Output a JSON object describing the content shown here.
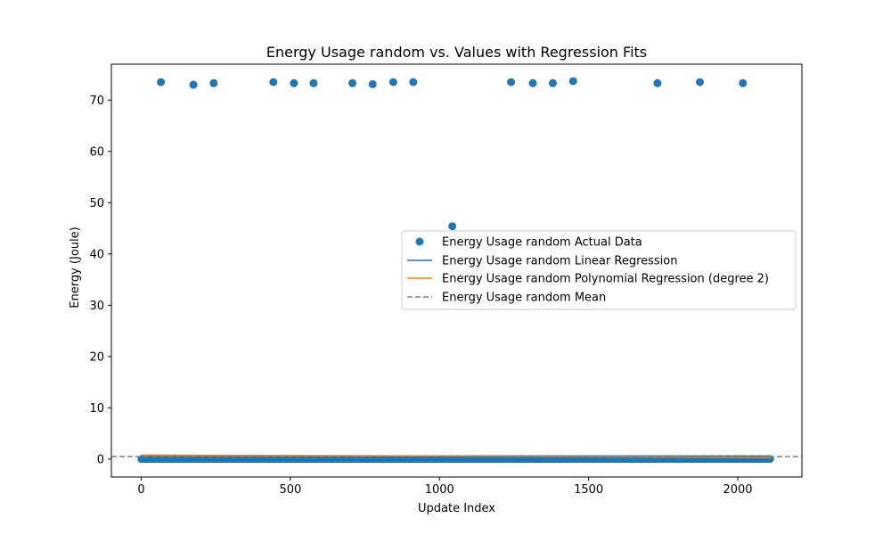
{
  "chart_data": {
    "type": "scatter",
    "title": "Energy Usage random vs. Values with Regression Fits",
    "xlabel": "Update Index",
    "ylabel": "Energy (Joule)",
    "xlim": [
      -100,
      2215
    ],
    "ylim": [
      -3.5,
      77
    ],
    "xticks": [
      0,
      500,
      1000,
      1500,
      2000
    ],
    "yticks": [
      0,
      10,
      20,
      30,
      40,
      50,
      60,
      70
    ],
    "grid": false,
    "legend_position": "center-right",
    "colors": {
      "scatter": "#1f77b4",
      "linear": "#1f77b4",
      "poly": "#ff7f0e",
      "mean": "#808080"
    },
    "series": [
      {
        "name": "Energy Usage random Actual Data",
        "kind": "scatter",
        "baseline": {
          "x_start": 0,
          "x_end": 2110,
          "y": 0.0
        },
        "outliers": [
          {
            "x": 66,
            "y": 73.5
          },
          {
            "x": 175,
            "y": 73.0
          },
          {
            "x": 243,
            "y": 73.3
          },
          {
            "x": 443,
            "y": 73.5
          },
          {
            "x": 512,
            "y": 73.3
          },
          {
            "x": 578,
            "y": 73.3
          },
          {
            "x": 708,
            "y": 73.3
          },
          {
            "x": 776,
            "y": 73.1
          },
          {
            "x": 845,
            "y": 73.5
          },
          {
            "x": 912,
            "y": 73.5
          },
          {
            "x": 1043,
            "y": 45.4
          },
          {
            "x": 1240,
            "y": 73.5
          },
          {
            "x": 1313,
            "y": 73.3
          },
          {
            "x": 1380,
            "y": 73.3
          },
          {
            "x": 1448,
            "y": 73.7
          },
          {
            "x": 1731,
            "y": 73.3
          },
          {
            "x": 1873,
            "y": 73.5
          },
          {
            "x": 2017,
            "y": 73.3
          }
        ]
      },
      {
        "name": "Energy Usage random Linear Regression",
        "kind": "line",
        "x": [
          0,
          2110
        ],
        "y": [
          0.75,
          0.2
        ]
      },
      {
        "name": "Energy Usage random Polynomial Regression (degree 2)",
        "kind": "line",
        "x": [
          0,
          500,
          1000,
          1500,
          2110
        ],
        "y": [
          0.78,
          0.7,
          0.6,
          0.48,
          0.28
        ]
      },
      {
        "name": "Energy Usage random Mean",
        "kind": "hline",
        "y": 0.5
      }
    ]
  }
}
